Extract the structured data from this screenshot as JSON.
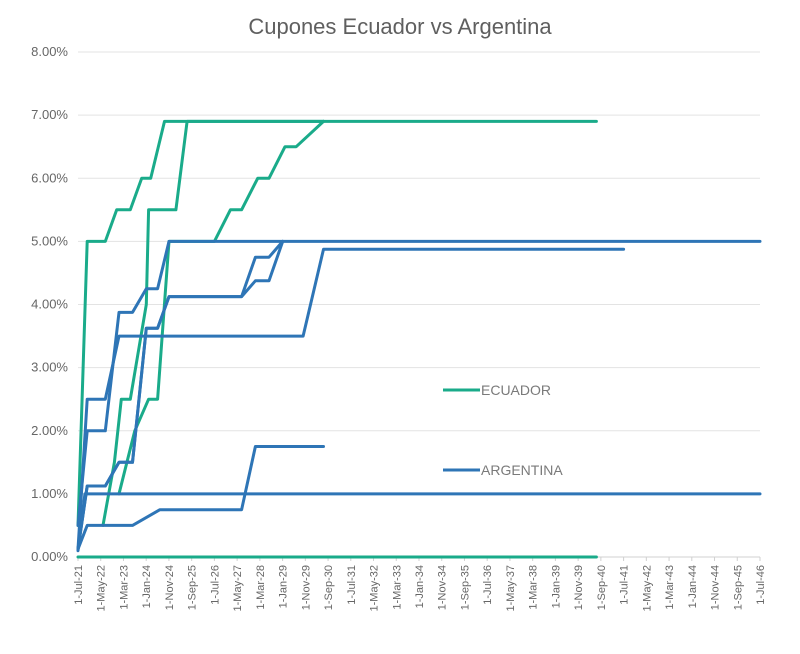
{
  "chart_data": {
    "type": "line",
    "title": "Cupones Ecuador vs Argentina",
    "xlabel": "",
    "ylabel": "",
    "y_format": "percent",
    "ylim": [
      0,
      8
    ],
    "y_ticks": [
      "0.00%",
      "1.00%",
      "2.00%",
      "3.00%",
      "4.00%",
      "5.00%",
      "6.00%",
      "7.00%",
      "8.00%"
    ],
    "x_ticks": [
      "1-Jul-21",
      "1-May-22",
      "1-Mar-23",
      "1-Jan-24",
      "1-Nov-24",
      "1-Sep-25",
      "1-Jul-26",
      "1-May-27",
      "1-Mar-28",
      "1-Jan-29",
      "1-Nov-29",
      "1-Sep-30",
      "1-Jul-31",
      "1-May-32",
      "1-Mar-33",
      "1-Jan-34",
      "1-Nov-34",
      "1-Sep-35",
      "1-Jul-36",
      "1-May-37",
      "1-Mar-38",
      "1-Jan-39",
      "1-Nov-39",
      "1-Sep-40",
      "1-Jul-41",
      "1-May-42",
      "1-Mar-43",
      "1-Jan-44",
      "1-Nov-44",
      "1-Sep-45",
      "1-Jul-46"
    ],
    "grid": true,
    "legend": [
      {
        "name": "ECUADOR",
        "color": "#1aab8a"
      },
      {
        "name": "ARGENTINA",
        "color": "#2e75b6"
      }
    ],
    "series": [
      {
        "group": "ECUADOR",
        "points": [
          [
            "2021-07-01",
            0.5
          ],
          [
            "2021-11-01",
            5.0
          ],
          [
            "2022-07-01",
            5.0
          ],
          [
            "2022-12-01",
            5.5
          ],
          [
            "2023-06-01",
            5.5
          ],
          [
            "2023-11-01",
            6.0
          ],
          [
            "2024-03-01",
            6.0
          ],
          [
            "2024-09-01",
            6.9
          ],
          [
            "2040-07-01",
            6.9
          ]
        ]
      },
      {
        "group": "ECUADOR",
        "points": [
          [
            "2022-06-01",
            0.5
          ],
          [
            "2022-11-01",
            1.5
          ],
          [
            "2023-02-01",
            2.5
          ],
          [
            "2023-06-01",
            2.5
          ],
          [
            "2024-01-01",
            4.0
          ],
          [
            "2024-02-01",
            5.5
          ],
          [
            "2025-02-01",
            5.5
          ],
          [
            "2025-07-01",
            6.9
          ],
          [
            "2030-07-01",
            6.9
          ]
        ]
      },
      {
        "group": "ECUADOR",
        "points": [
          [
            "2023-01-01",
            1.0
          ],
          [
            "2023-08-01",
            2.0
          ],
          [
            "2024-02-01",
            2.5
          ],
          [
            "2024-06-01",
            2.5
          ],
          [
            "2024-11-01",
            5.0
          ],
          [
            "2026-07-01",
            5.0
          ],
          [
            "2027-02-01",
            5.5
          ],
          [
            "2027-07-01",
            5.5
          ],
          [
            "2028-02-01",
            6.0
          ],
          [
            "2028-07-01",
            6.0
          ],
          [
            "2029-02-01",
            6.5
          ],
          [
            "2029-07-01",
            6.5
          ],
          [
            "2030-07-01",
            6.9
          ]
        ]
      },
      {
        "group": "ECUADOR",
        "points": [
          [
            "2021-07-01",
            0.0
          ],
          [
            "2040-07-01",
            0.0
          ]
        ]
      },
      {
        "group": "ARGENTINA",
        "points": [
          [
            "2021-07-01",
            0.1
          ],
          [
            "2021-10-01",
            1.0
          ],
          [
            "2046-07-01",
            1.0
          ]
        ]
      },
      {
        "group": "ARGENTINA",
        "points": [
          [
            "2021-07-01",
            0.5
          ],
          [
            "2021-11-01",
            2.0
          ],
          [
            "2022-07-01",
            2.0
          ],
          [
            "2023-01-01",
            3.875
          ],
          [
            "2023-07-01",
            3.875
          ],
          [
            "2024-01-01",
            4.25
          ],
          [
            "2024-06-01",
            4.25
          ],
          [
            "2024-11-01",
            5.0
          ],
          [
            "2046-07-01",
            5.0
          ]
        ]
      },
      {
        "group": "ARGENTINA",
        "points": [
          [
            "2021-07-01",
            0.125
          ],
          [
            "2021-11-01",
            2.5
          ],
          [
            "2022-07-01",
            2.5
          ],
          [
            "2023-01-01",
            3.5
          ],
          [
            "2029-10-01",
            3.5
          ],
          [
            "2030-07-01",
            4.875
          ],
          [
            "2041-07-01",
            4.875
          ]
        ]
      },
      {
        "group": "ARGENTINA",
        "points": [
          [
            "2021-07-01",
            0.125
          ],
          [
            "2021-11-01",
            1.125
          ],
          [
            "2022-07-01",
            1.125
          ],
          [
            "2023-01-01",
            1.5
          ],
          [
            "2023-07-01",
            1.5
          ],
          [
            "2024-01-01",
            3.625
          ],
          [
            "2024-06-01",
            3.625
          ],
          [
            "2024-11-01",
            4.125
          ],
          [
            "2027-07-01",
            4.125
          ],
          [
            "2028-01-01",
            4.375
          ],
          [
            "2028-07-01",
            4.375
          ],
          [
            "2029-01-01",
            5.0
          ]
        ]
      },
      {
        "group": "ARGENTINA",
        "points": [
          [
            "2021-07-01",
            0.125
          ],
          [
            "2021-11-01",
            1.125
          ],
          [
            "2022-07-01",
            1.125
          ],
          [
            "2023-01-01",
            1.5
          ],
          [
            "2023-07-01",
            1.5
          ],
          [
            "2024-01-01",
            3.625
          ],
          [
            "2024-06-01",
            3.625
          ],
          [
            "2024-11-01",
            4.125
          ],
          [
            "2027-07-01",
            4.125
          ],
          [
            "2028-01-01",
            4.75
          ],
          [
            "2028-07-01",
            4.75
          ],
          [
            "2029-01-01",
            5.0
          ]
        ]
      },
      {
        "group": "ARGENTINA",
        "points": [
          [
            "2021-07-01",
            0.125
          ],
          [
            "2021-11-01",
            0.5
          ],
          [
            "2023-07-01",
            0.5
          ],
          [
            "2024-07-01",
            0.75
          ],
          [
            "2027-07-01",
            0.75
          ],
          [
            "2028-01-01",
            1.75
          ],
          [
            "2030-07-01",
            1.75
          ]
        ]
      }
    ]
  }
}
